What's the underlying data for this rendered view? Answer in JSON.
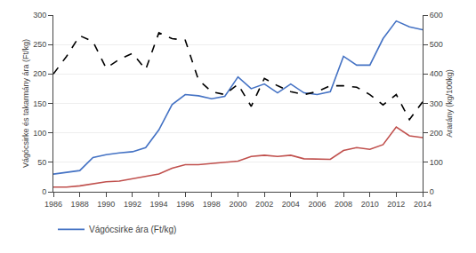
{
  "chart_data": {
    "type": "line",
    "x": [
      1986,
      1987,
      1988,
      1989,
      1990,
      1991,
      1992,
      1993,
      1994,
      1995,
      1996,
      1997,
      1998,
      1999,
      2000,
      2001,
      2002,
      2003,
      2004,
      2005,
      2006,
      2007,
      2008,
      2009,
      2010,
      2011,
      2012,
      2013,
      2014
    ],
    "series": [
      {
        "name": "Vágócsirke ára (Ft/kg)",
        "color": "#4472C4",
        "values": [
          30,
          33,
          36,
          58,
          63,
          66,
          68,
          75,
          105,
          148,
          165,
          163,
          158,
          162,
          195,
          175,
          183,
          168,
          183,
          168,
          165,
          170,
          230,
          215,
          215,
          260,
          290,
          280,
          275
        ]
      },
      {
        "color": "#C0504D",
        "values": [
          8,
          8,
          10,
          14,
          17,
          18,
          22,
          25,
          30,
          40,
          46,
          46,
          48,
          50,
          52,
          60,
          62,
          60,
          62,
          56,
          55,
          55,
          70,
          75,
          72,
          80,
          110,
          95,
          92
        ]
      },
      {
        "color": "#000000",
        "axis": "y2",
        "line_style": "dashed",
        "values": [
          400,
          460,
          530,
          510,
          420,
          450,
          470,
          415,
          540,
          520,
          515,
          380,
          340,
          330,
          365,
          290,
          385,
          360,
          340,
          330,
          340,
          360,
          360,
          355,
          330,
          295,
          330,
          245,
          305
        ]
      }
    ],
    "xlim": [
      1986,
      2014
    ],
    "xticks": [
      1986,
      1988,
      1990,
      1992,
      1994,
      1996,
      1998,
      2000,
      2002,
      2004,
      2006,
      2008,
      2010,
      2012,
      2014
    ],
    "ylim": [
      0,
      300
    ],
    "yticks": [
      0,
      50,
      100,
      150,
      200,
      250,
      300
    ],
    "y2lim": [
      0,
      600
    ],
    "y2ticks": [
      0,
      100,
      200,
      300,
      400,
      500,
      600
    ],
    "ylabel": "Vágócsirke és takarmány ára (Ft/kg)",
    "y2label": "Ararány (kg/100kg)",
    "grid": true,
    "legend": "bottom"
  }
}
